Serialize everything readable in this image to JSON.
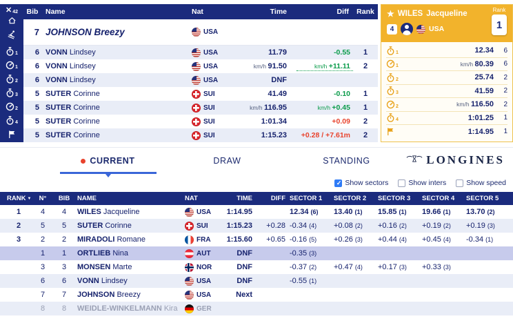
{
  "rail": {
    "count": "42"
  },
  "live": {
    "headers": {
      "bib": "Bib",
      "name": "Name",
      "nat": "Nat",
      "time": "Time",
      "diff": "Diff",
      "rank": "Rank"
    },
    "featured": {
      "bib": "7",
      "surname": "JOHNSON",
      "given": "Breezy",
      "nat": "USA",
      "flag": "usa"
    },
    "rows": [
      {
        "icon": "timer",
        "num": "1",
        "bib": "6",
        "surname": "VONN",
        "given": "Lindsey",
        "flag": "usa",
        "nat": "USA",
        "time": "11.79",
        "diff": "-0.55",
        "diffColor": "green",
        "rank": "1"
      },
      {
        "icon": "speed",
        "num": "1",
        "bib": "6",
        "surname": "VONN",
        "given": "Lindsey",
        "flag": "usa",
        "nat": "USA",
        "timePrefix": "km/h",
        "time": "91.50",
        "diffPrefix": "km/h",
        "diff": "+11.11",
        "diffColor": "green",
        "rank": "2",
        "dotted": true
      },
      {
        "icon": "timer",
        "num": "2",
        "bib": "6",
        "surname": "VONN",
        "given": "Lindsey",
        "flag": "usa",
        "nat": "USA",
        "time": "DNF",
        "dnf": true
      },
      {
        "icon": "timer",
        "num": "3",
        "bib": "5",
        "surname": "SUTER",
        "given": "Corinne",
        "flag": "sui",
        "nat": "SUI",
        "time": "41.49",
        "diff": "-0.10",
        "diffColor": "green",
        "rank": "1"
      },
      {
        "icon": "speed",
        "num": "2",
        "bib": "5",
        "surname": "SUTER",
        "given": "Corinne",
        "flag": "sui",
        "nat": "SUI",
        "timePrefix": "km/h",
        "time": "116.95",
        "diffPrefix": "km/h",
        "diff": "+0.45",
        "diffColor": "green",
        "rank": "1"
      },
      {
        "icon": "timer",
        "num": "4",
        "bib": "5",
        "surname": "SUTER",
        "given": "Corinne",
        "flag": "sui",
        "nat": "SUI",
        "time": "1:01.34",
        "diff": "+0.09",
        "diffColor": "red",
        "rank": "2"
      },
      {
        "icon": "flag",
        "bib": "5",
        "surname": "SUTER",
        "given": "Corinne",
        "flag": "sui",
        "nat": "SUI",
        "time": "1:15.23",
        "diff": "+0.28 / +7.61m",
        "diffColor": "red",
        "rank": "2"
      }
    ]
  },
  "athlete": {
    "surname": "WILES",
    "given": "Jacqueline",
    "bib": "4",
    "nat": "USA",
    "flag": "usa",
    "rank_label": "Rank",
    "rank": "1",
    "splits": [
      {
        "icon": "timer",
        "num": "1",
        "value": "12.34",
        "rank": "6"
      },
      {
        "icon": "speed",
        "num": "1",
        "prefix": "km/h",
        "value": "80.39",
        "rank": "6"
      },
      {
        "icon": "timer",
        "num": "2",
        "value": "25.74",
        "rank": "2"
      },
      {
        "icon": "timer",
        "num": "3",
        "value": "41.59",
        "rank": "2"
      },
      {
        "icon": "speed",
        "num": "2",
        "prefix": "km/h",
        "value": "116.50",
        "rank": "2"
      },
      {
        "icon": "timer",
        "num": "4",
        "value": "1:01.25",
        "rank": "1"
      },
      {
        "icon": "flag",
        "value": "1:14.95",
        "rank": "1"
      }
    ]
  },
  "tabs": [
    {
      "label": "CURRENT",
      "active": true
    },
    {
      "label": "DRAW",
      "active": false
    },
    {
      "label": "STANDING",
      "active": false
    }
  ],
  "brand": {
    "name": "LONGINES"
  },
  "filters": [
    {
      "label": "Show sectors",
      "checked": true
    },
    {
      "label": "Show inters",
      "checked": false
    },
    {
      "label": "Show speed",
      "checked": false
    }
  ],
  "results": {
    "headers": {
      "rank": "RANK",
      "n": "N°",
      "bib": "BIB",
      "name": "NAME",
      "nat": "NAT",
      "time": "TIME",
      "diff": "DIFF",
      "sectors": [
        "SECTOR 1",
        "SECTOR 2",
        "SECTOR 3",
        "SECTOR 4",
        "SECTOR 5"
      ]
    },
    "rows": [
      {
        "rank": "1",
        "n": "4",
        "bib": "4",
        "surname": "WILES",
        "given": "Jacqueline",
        "flag": "usa",
        "nat": "USA",
        "time": "1:14.95",
        "diff": "",
        "leader": true,
        "sectors": [
          [
            "12.34",
            "(6)"
          ],
          [
            "13.40",
            "(1)"
          ],
          [
            "15.85",
            "(1)"
          ],
          [
            "19.66",
            "(1)"
          ],
          [
            "13.70",
            "(2)"
          ]
        ]
      },
      {
        "rank": "2",
        "n": "5",
        "bib": "5",
        "surname": "SUTER",
        "given": "Corinne",
        "flag": "sui",
        "nat": "SUI",
        "time": "1:15.23",
        "diff": "+0.28",
        "sectors": [
          [
            "-0.34",
            "(4)"
          ],
          [
            "+0.08",
            "(2)"
          ],
          [
            "+0.16",
            "(2)"
          ],
          [
            "+0.19",
            "(2)"
          ],
          [
            "+0.19",
            "(3)"
          ]
        ]
      },
      {
        "rank": "3",
        "n": "2",
        "bib": "2",
        "surname": "MIRADOLI",
        "given": "Romane",
        "flag": "fra",
        "nat": "FRA",
        "time": "1:15.60",
        "diff": "+0.65",
        "sectors": [
          [
            "-0.16",
            "(5)"
          ],
          [
            "+0.26",
            "(3)"
          ],
          [
            "+0.44",
            "(4)"
          ],
          [
            "+0.45",
            "(4)"
          ],
          [
            "-0.34",
            "(1)"
          ]
        ]
      },
      {
        "rank": "",
        "n": "1",
        "bib": "1",
        "surname": "ORTLIEB",
        "given": "Nina",
        "flag": "aut",
        "nat": "AUT",
        "time": "DNF",
        "diff": "",
        "highlight": true,
        "sectors": [
          [
            "-0.35",
            "(3)"
          ],
          null,
          null,
          null,
          null
        ]
      },
      {
        "rank": "",
        "n": "3",
        "bib": "3",
        "surname": "MONSEN",
        "given": "Marte",
        "flag": "nor",
        "nat": "NOR",
        "time": "DNF",
        "diff": "",
        "sectors": [
          [
            "-0.37",
            "(2)"
          ],
          [
            "+0.47",
            "(4)"
          ],
          [
            "+0.17",
            "(3)"
          ],
          [
            "+0.33",
            "(3)"
          ],
          null
        ]
      },
      {
        "rank": "",
        "n": "6",
        "bib": "6",
        "surname": "VONN",
        "given": "Lindsey",
        "flag": "usa",
        "nat": "USA",
        "time": "DNF",
        "diff": "",
        "sectors": [
          [
            "-0.55",
            "(1)"
          ],
          null,
          null,
          null,
          null
        ]
      },
      {
        "rank": "",
        "n": "7",
        "bib": "7",
        "surname": "JOHNSON",
        "given": "Breezy",
        "flag": "usa",
        "nat": "USA",
        "time": "Next",
        "diff": "",
        "sectors": [
          null,
          null,
          null,
          null,
          null
        ]
      },
      {
        "rank": "",
        "n": "8",
        "bib": "8",
        "surname": "WEIDLE-WINKELMANN",
        "given": "Kira",
        "flag": "ger",
        "nat": "GER",
        "time": "",
        "diff": "",
        "muted": true,
        "sectors": [
          null,
          null,
          null,
          null,
          null
        ]
      }
    ]
  }
}
